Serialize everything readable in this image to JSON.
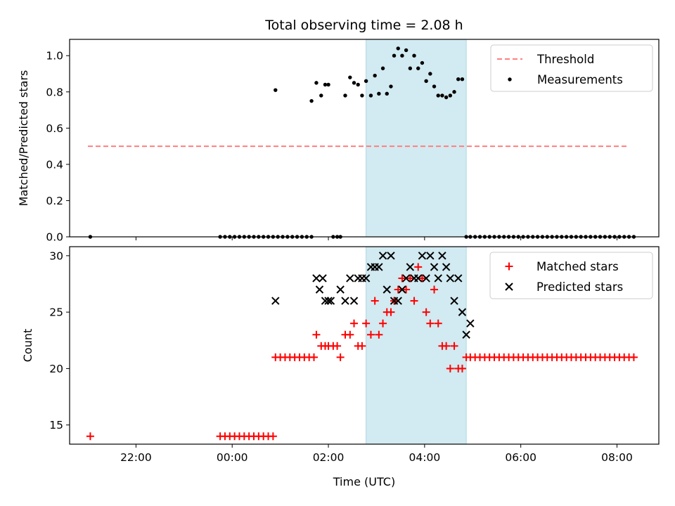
{
  "figure": {
    "title": "Total observing time = 2.08 h",
    "xlabel": "Time (UTC)",
    "x_ticks": [
      "22:00",
      "00:00",
      "02:00",
      "04:00",
      "06:00",
      "08:00"
    ]
  },
  "colors": {
    "threshold": "#ff7f7f",
    "measurements": "#000000",
    "matched": "#ff0000",
    "predicted": "#000000",
    "shade": "#add8e6"
  },
  "chart_data": [
    {
      "type": "scatter",
      "ylabel": "Matched/Predicted stars",
      "ylim": [
        0,
        1.09
      ],
      "yticks": [
        "0.0",
        "0.2",
        "0.4",
        "0.6",
        "0.8",
        "1.0"
      ],
      "xlim_hours": [
        20.62,
        32.87
      ],
      "shaded_span": [
        "02:47",
        "04:52"
      ],
      "legend_position": "upper right",
      "series": [
        {
          "name": "Threshold",
          "kind": "dashed-line",
          "x": [
            "21:00",
            "08:15"
          ],
          "y": [
            0.5,
            0.5
          ]
        },
        {
          "name": "Measurements",
          "kind": "points",
          "x": [
            "21:03",
            "23:45",
            "23:51",
            "23:57",
            "00:03",
            "00:09",
            "00:15",
            "00:21",
            "00:27",
            "00:33",
            "00:39",
            "00:45",
            "00:51",
            "00:57",
            "01:03",
            "01:09",
            "01:15",
            "01:21",
            "01:27",
            "01:33",
            "01:39",
            "00:54",
            "01:39",
            "01:45",
            "01:51",
            "01:56",
            "02:00",
            "02:06",
            "02:11",
            "02:15",
            "02:21",
            "02:27",
            "02:32",
            "02:37",
            "02:42",
            "02:47",
            "02:53",
            "02:58",
            "03:03",
            "03:08",
            "03:13",
            "03:18",
            "03:22",
            "03:27",
            "03:32",
            "03:37",
            "03:42",
            "03:47",
            "03:52",
            "03:57",
            "04:02",
            "04:07",
            "04:12",
            "04:17",
            "04:22",
            "04:27",
            "04:32",
            "04:37",
            "04:42",
            "04:47",
            "04:52",
            "04:57",
            "05:03",
            "05:09",
            "05:15",
            "05:21",
            "05:27",
            "05:33",
            "05:39",
            "05:45",
            "05:51",
            "05:57",
            "06:03",
            "06:09",
            "06:15",
            "06:21",
            "06:27",
            "06:33",
            "06:39",
            "06:45",
            "06:51",
            "06:57",
            "07:03",
            "07:09",
            "07:15",
            "07:21",
            "07:27",
            "07:33",
            "07:39",
            "07:45",
            "07:51",
            "07:57",
            "08:03",
            "08:09",
            "08:15",
            "08:21"
          ],
          "y": [
            0,
            0,
            0,
            0,
            0,
            0,
            0,
            0,
            0,
            0,
            0,
            0,
            0,
            0,
            0,
            0,
            0,
            0,
            0,
            0,
            0,
            0.81,
            0.75,
            0.85,
            0.78,
            0.84,
            0.84,
            0,
            0,
            0,
            0.78,
            0.88,
            0.85,
            0.84,
            0.78,
            0.86,
            0.78,
            0.89,
            0.79,
            0.93,
            0.79,
            0.83,
            1.0,
            1.04,
            1.0,
            1.03,
            0.93,
            1.0,
            0.93,
            0.96,
            0.86,
            0.9,
            0.83,
            0.78,
            0.78,
            0.77,
            0.78,
            0.8,
            0.87,
            0.87,
            0,
            0,
            0,
            0,
            0,
            0,
            0,
            0,
            0,
            0,
            0,
            0,
            0,
            0,
            0,
            0,
            0,
            0,
            0,
            0,
            0,
            0,
            0,
            0,
            0,
            0,
            0,
            0,
            0,
            0,
            0,
            0,
            0,
            0,
            0,
            0
          ]
        }
      ]
    },
    {
      "type": "scatter",
      "ylabel": "Count",
      "ylim": [
        13.3,
        30.8
      ],
      "yticks": [
        "15",
        "20",
        "25",
        "30"
      ],
      "xlim_hours": [
        20.62,
        32.87
      ],
      "shaded_span": [
        "02:47",
        "04:52"
      ],
      "legend_position": "upper right",
      "series": [
        {
          "name": "Matched stars",
          "kind": "plus",
          "x": [
            "21:03",
            "23:45",
            "23:51",
            "23:57",
            "00:03",
            "00:09",
            "00:15",
            "00:21",
            "00:27",
            "00:33",
            "00:39",
            "00:45",
            "00:51",
            "00:54",
            "01:00",
            "01:06",
            "01:12",
            "01:18",
            "01:24",
            "01:30",
            "01:36",
            "01:42",
            "01:45",
            "01:51",
            "01:56",
            "02:00",
            "02:06",
            "02:11",
            "02:15",
            "02:21",
            "02:27",
            "02:32",
            "02:37",
            "02:42",
            "02:47",
            "02:53",
            "02:58",
            "03:03",
            "03:08",
            "03:13",
            "03:18",
            "03:22",
            "03:27",
            "03:32",
            "03:37",
            "03:42",
            "03:47",
            "03:52",
            "03:57",
            "04:02",
            "04:07",
            "04:12",
            "04:17",
            "04:22",
            "04:27",
            "04:32",
            "04:37",
            "04:42",
            "04:47",
            "04:52",
            "04:57",
            "05:03",
            "05:09",
            "05:15",
            "05:21",
            "05:27",
            "05:33",
            "05:39",
            "05:45",
            "05:51",
            "05:57",
            "06:03",
            "06:09",
            "06:15",
            "06:21",
            "06:27",
            "06:33",
            "06:39",
            "06:45",
            "06:51",
            "06:57",
            "07:03",
            "07:09",
            "07:15",
            "07:21",
            "07:27",
            "07:33",
            "07:39",
            "07:45",
            "07:51",
            "07:57",
            "08:03",
            "08:09",
            "08:15",
            "08:21"
          ],
          "y": [
            14,
            14,
            14,
            14,
            14,
            14,
            14,
            14,
            14,
            14,
            14,
            14,
            14,
            21,
            21,
            21,
            21,
            21,
            21,
            21,
            21,
            21,
            23,
            22,
            22,
            22,
            22,
            22,
            21,
            23,
            23,
            24,
            22,
            22,
            24,
            23,
            26,
            23,
            24,
            25,
            25,
            26,
            27,
            28,
            27,
            28,
            26,
            29,
            28,
            25,
            24,
            27,
            24,
            22,
            22,
            20,
            22,
            20,
            20,
            21,
            21,
            21,
            21,
            21,
            21,
            21,
            21,
            21,
            21,
            21,
            21,
            21,
            21,
            21,
            21,
            21,
            21,
            21,
            21,
            21,
            21,
            21,
            21,
            21,
            21,
            21,
            21,
            21,
            21,
            21,
            21,
            21,
            21,
            21,
            21
          ]
        },
        {
          "name": "Predicted stars",
          "kind": "cross",
          "x": [
            "00:54",
            "01:45",
            "01:49",
            "01:53",
            "01:56",
            "02:00",
            "02:03",
            "02:15",
            "02:21",
            "02:27",
            "02:32",
            "02:37",
            "02:42",
            "02:47",
            "02:53",
            "02:58",
            "03:03",
            "03:08",
            "03:13",
            "03:18",
            "03:22",
            "03:27",
            "03:32",
            "03:37",
            "03:42",
            "03:47",
            "03:52",
            "03:57",
            "04:02",
            "04:07",
            "04:12",
            "04:17",
            "04:22",
            "04:27",
            "04:32",
            "04:37",
            "04:42",
            "04:47",
            "04:52",
            "04:57"
          ],
          "y": [
            26,
            28,
            27,
            28,
            26,
            26,
            26,
            27,
            26,
            28,
            26,
            28,
            28,
            28,
            29,
            29,
            29,
            30,
            27,
            30,
            26,
            26,
            27,
            28,
            29,
            28,
            28,
            30,
            28,
            30,
            29,
            28,
            30,
            29,
            28,
            26,
            28,
            25,
            23,
            24
          ]
        }
      ]
    }
  ]
}
